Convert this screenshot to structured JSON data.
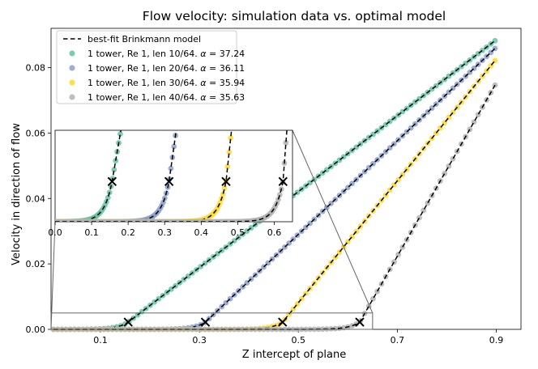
{
  "chart_data": {
    "type": "scatter",
    "title": "Flow velocity: simulation data vs. optimal model",
    "xlabel": "Z intercept of plane",
    "ylabel": "Velocity in direction of flow",
    "xlim": [
      0.0,
      0.95
    ],
    "ylim": [
      0.0,
      0.092
    ],
    "xticks": [
      0.1,
      0.3,
      0.5,
      0.7,
      0.9
    ],
    "xtick_labels": [
      "0.1",
      "0.3",
      "0.5",
      "0.7",
      "0.9"
    ],
    "yticks": [
      0.0,
      0.02,
      0.04,
      0.06,
      0.08
    ],
    "ytick_labels": [
      "0.00",
      "0.02",
      "0.04",
      "0.06",
      "0.08"
    ],
    "legend_position": "top-left",
    "model_label": "best-fit Brinkmann model",
    "series": [
      {
        "name": "1 tower, Re 1, len 10/64. α = 37.24",
        "label_main": "1 tower, Re 1, len 10/64. ",
        "label_alpha": "α",
        "label_value": " = 37.24",
        "color": "#66c2a5",
        "onset": 0.156,
        "end_x": 0.9,
        "end_y": 0.0885
      },
      {
        "name": "1 tower, Re 1, len 20/64. α = 36.11",
        "label_main": "1 tower, Re 1, len 20/64. ",
        "label_alpha": "α",
        "label_value": " = 36.11",
        "color": "#8da0cb",
        "onset": 0.312,
        "end_x": 0.9,
        "end_y": 0.0862
      },
      {
        "name": "1 tower, Re 1, len 30/64. α = 35.94",
        "label_main": "1 tower, Re 1, len 30/64. ",
        "label_alpha": "α",
        "label_value": " = 35.94",
        "color": "#ffd92f",
        "onset": 0.468,
        "end_x": 0.9,
        "end_y": 0.0826
      },
      {
        "name": "1 tower, Re 1, len 40/64. α = 35.63",
        "label_main": "1 tower, Re 1, len 40/64. ",
        "label_alpha": "α",
        "label_value": " = 35.63",
        "color": "#b3b3b3",
        "onset": 0.624,
        "end_x": 0.9,
        "end_y": 0.0753
      }
    ],
    "inset": {
      "xlim": [
        0.0,
        0.65
      ],
      "ylim": [
        0.0,
        0.005
      ],
      "xticks": [
        0.0,
        0.1,
        0.2,
        0.3,
        0.4,
        0.5,
        0.6
      ],
      "xtick_labels": [
        "0.0",
        "0.1",
        "0.2",
        "0.3",
        "0.4",
        "0.5",
        "0.6"
      ],
      "marker_y": 0.0022
    }
  }
}
